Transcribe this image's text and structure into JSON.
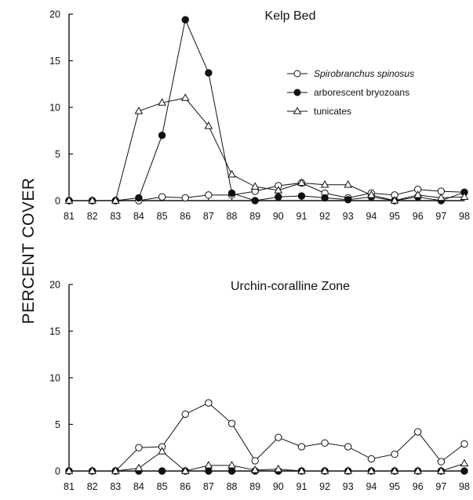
{
  "figure": {
    "ylabel": "PERCENT COVER"
  },
  "legend": [
    {
      "series": "Spirobranchus spinosus",
      "marker": "open-circle",
      "italic": true
    },
    {
      "series": "arborescent bryozoans",
      "marker": "filled-circle",
      "italic": false
    },
    {
      "series": "tunicates",
      "marker": "open-triangle",
      "italic": false
    }
  ],
  "chart_data": [
    {
      "type": "line",
      "title": "Kelp Bed",
      "xlabel": "",
      "ylabel": "PERCENT COVER",
      "x": [
        "81",
        "82",
        "83",
        "84",
        "85",
        "86",
        "87",
        "88",
        "89",
        "90",
        "91",
        "92",
        "93",
        "94",
        "95",
        "96",
        "97",
        "98"
      ],
      "ylim": [
        0,
        20
      ],
      "yticks": [
        0,
        5,
        10,
        15,
        20
      ],
      "grid": false,
      "legend_position": "right",
      "series": [
        {
          "name": "Spirobranchus spinosus",
          "marker": "open-circle",
          "values": [
            0,
            0,
            0,
            0,
            0.4,
            0.3,
            0.6,
            0.6,
            1.0,
            1.6,
            1.9,
            0.8,
            0.3,
            0.8,
            0.6,
            1.2,
            1.0,
            0.9
          ]
        },
        {
          "name": "arborescent bryozoans",
          "marker": "filled-circle",
          "values": [
            0,
            0,
            0,
            0.3,
            7.0,
            19.4,
            13.7,
            0.8,
            0,
            0.4,
            0.5,
            0.3,
            0.1,
            0.4,
            0,
            0.4,
            0,
            0.9
          ]
        },
        {
          "name": "tunicates",
          "marker": "open-triangle",
          "values": [
            0,
            0,
            0,
            9.6,
            10.5,
            11.0,
            8.0,
            2.8,
            1.5,
            1.1,
            1.9,
            1.7,
            1.7,
            0.6,
            0,
            0.6,
            0.3,
            0.4
          ]
        }
      ]
    },
    {
      "type": "line",
      "title": "Urchin-coralline Zone",
      "xlabel": "",
      "ylabel": "PERCENT COVER",
      "x": [
        "81",
        "82",
        "83",
        "84",
        "85",
        "86",
        "87",
        "88",
        "89",
        "90",
        "91",
        "92",
        "93",
        "94",
        "95",
        "96",
        "97",
        "98"
      ],
      "ylim": [
        0,
        20
      ],
      "yticks": [
        0,
        5,
        10,
        15,
        20
      ],
      "grid": false,
      "series": [
        {
          "name": "Spirobranchus spinosus",
          "marker": "open-circle",
          "values": [
            0,
            0,
            0,
            2.5,
            2.6,
            6.1,
            7.3,
            5.1,
            1.1,
            3.6,
            2.6,
            3.0,
            2.6,
            1.3,
            1.8,
            4.2,
            1.0,
            2.9
          ]
        },
        {
          "name": "arborescent bryozoans",
          "marker": "filled-circle",
          "values": [
            0,
            0,
            0,
            0,
            0,
            0,
            0,
            0,
            0,
            0,
            0,
            0,
            0,
            0,
            0,
            0,
            0,
            0
          ]
        },
        {
          "name": "tunicates",
          "marker": "open-triangle",
          "values": [
            0,
            0,
            0,
            0.3,
            2.1,
            0,
            0.6,
            0.6,
            0.1,
            0.2,
            0,
            0,
            0,
            0,
            0,
            0,
            0,
            0.8
          ]
        }
      ]
    }
  ]
}
